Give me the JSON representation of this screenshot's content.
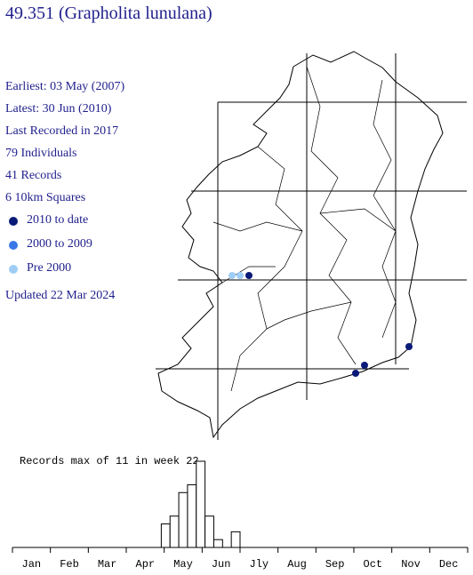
{
  "header": {
    "title": "49.351 (Grapholita lunulana)"
  },
  "info": [
    "Earliest: 03 May (2007)",
    "Latest: 30 Jun (2010)",
    "Last Recorded in 2017",
    "79 Individuals",
    "41 Records",
    "6 10km Squares"
  ],
  "legend": [
    {
      "label": "2010 to date",
      "color": "#0a1a78"
    },
    {
      "label": "2000 to 2009",
      "color": "#3a78e8"
    },
    {
      "label": "Pre 2000",
      "color": "#9ecdf5"
    }
  ],
  "updated": "Updated 22 Mar 2024",
  "chart_data": {
    "type": "bar",
    "title": "Records max of 11 in week 22",
    "x": [
      18,
      19,
      20,
      21,
      22,
      23,
      24,
      25,
      26
    ],
    "values": [
      3,
      4,
      7,
      8,
      11,
      4,
      1,
      0,
      2
    ],
    "xlim": [
      1,
      53
    ],
    "ylim": [
      0,
      11
    ],
    "color": "#ffffff",
    "categories": [
      "Jan",
      "Feb",
      "Mar",
      "Apr",
      "May",
      "Jun",
      "Jly",
      "Aug",
      "Sep",
      "Oct",
      "Nov",
      "Dec"
    ]
  }
}
